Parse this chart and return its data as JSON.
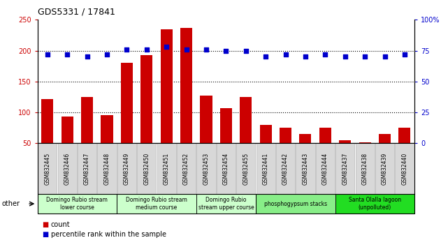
{
  "title": "GDS5331 / 17841",
  "samples": [
    "GSM832445",
    "GSM832446",
    "GSM832447",
    "GSM832448",
    "GSM832449",
    "GSM832450",
    "GSM832451",
    "GSM832452",
    "GSM832453",
    "GSM832454",
    "GSM832455",
    "GSM832441",
    "GSM832442",
    "GSM832443",
    "GSM832444",
    "GSM832437",
    "GSM832438",
    "GSM832439",
    "GSM832440"
  ],
  "counts": [
    122,
    93,
    125,
    95,
    180,
    193,
    235,
    237,
    127,
    107,
    125,
    80,
    75,
    65,
    75,
    55,
    52,
    65,
    75
  ],
  "percentiles": [
    72,
    72,
    70,
    72,
    76,
    76,
    78,
    76,
    76,
    75,
    75,
    70,
    72,
    70,
    72,
    70,
    70,
    70,
    72
  ],
  "groups": [
    {
      "label": "Domingo Rubio stream\nlower course",
      "start": 0,
      "end": 4,
      "color": "#ccffcc"
    },
    {
      "label": "Domingo Rubio stream\nmedium course",
      "start": 4,
      "end": 8,
      "color": "#ccffcc"
    },
    {
      "label": "Domingo Rubio\nstream upper course",
      "start": 8,
      "end": 11,
      "color": "#ccffcc"
    },
    {
      "label": "phosphogypsum stacks",
      "start": 11,
      "end": 15,
      "color": "#88ee88"
    },
    {
      "label": "Santa Olalla lagoon\n(unpolluted)",
      "start": 15,
      "end": 19,
      "color": "#22dd22"
    }
  ],
  "bar_color": "#cc0000",
  "dot_color": "#0000cc",
  "ylim_left": [
    50,
    250
  ],
  "ylim_right": [
    0,
    100
  ],
  "yticks_left": [
    50,
    100,
    150,
    200,
    250
  ],
  "yticks_right": [
    0,
    25,
    50,
    75,
    100
  ],
  "bar_width": 0.6,
  "bg_color": "#ffffff",
  "tick_bg_color": "#d8d8d8",
  "legend_count_color": "#cc0000",
  "legend_pct_color": "#0000cc"
}
